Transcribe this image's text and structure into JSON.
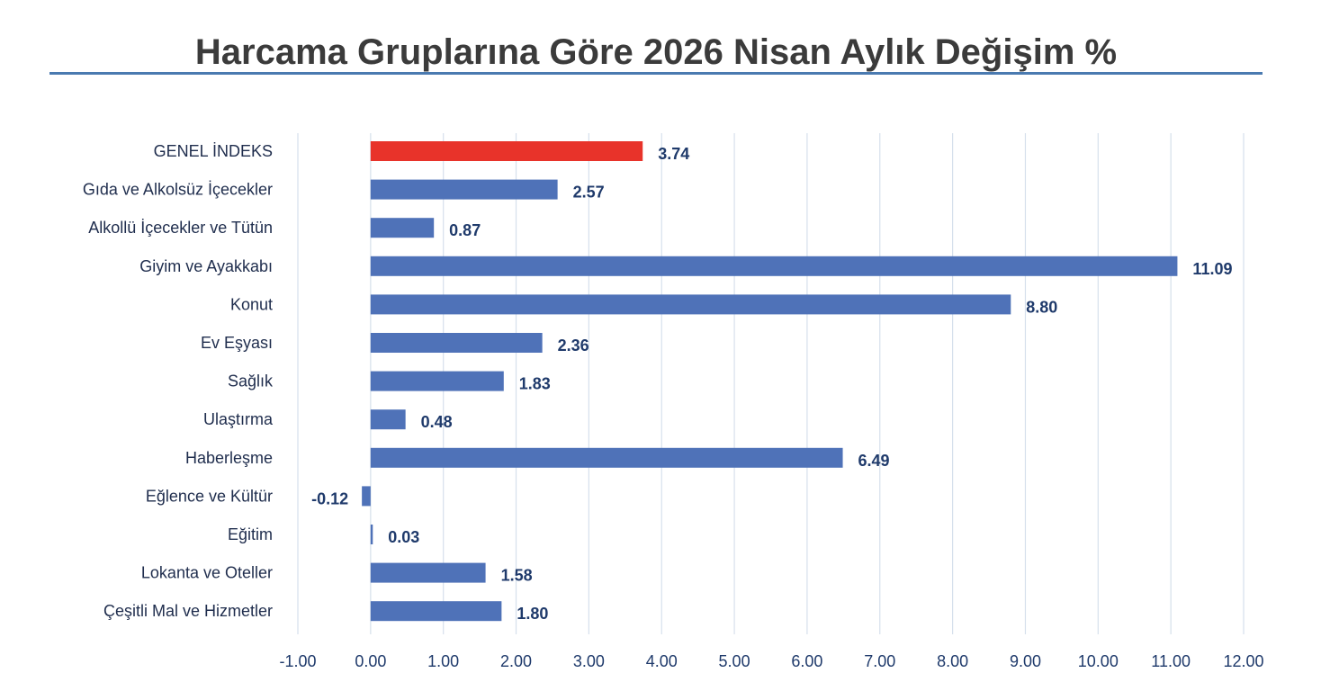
{
  "chart_data": {
    "type": "bar",
    "orientation": "horizontal",
    "title": "Harcama Gruplarına Göre 2026 Nisan Aylık Değişim %",
    "categories": [
      "GENEL İNDEKS",
      "Gıda ve Alkolsüz İçecekler",
      "Alkollü İçecekler ve Tütün",
      "Giyim ve Ayakkabı",
      "Konut",
      "Ev Eşyası",
      "Sağlık",
      "Ulaştırma",
      "Haberleşme",
      "Eğlence ve Kültür",
      "Eğitim",
      "Lokanta ve Oteller",
      "Çeşitli Mal ve Hizmetler"
    ],
    "values": [
      3.74,
      2.57,
      0.87,
      11.09,
      8.8,
      2.36,
      1.83,
      0.48,
      6.49,
      -0.12,
      0.03,
      1.58,
      1.8
    ],
    "value_labels": [
      "3.74",
      "2.57",
      "0.87",
      "11.09",
      "8.80",
      "2.36",
      "1.83",
      "0.48",
      "6.49",
      "-0.12",
      "0.03",
      "1.58",
      "1.80"
    ],
    "xlim": [
      -1,
      12
    ],
    "xticks": [
      "-1.00",
      "0.00",
      "1.00",
      "2.00",
      "3.00",
      "4.00",
      "5.00",
      "6.00",
      "7.00",
      "8.00",
      "9.00",
      "10.00",
      "11.00",
      "12.00"
    ],
    "highlight_index": 0,
    "colors": {
      "bar": "#4f72b8",
      "highlight": "#e8332a",
      "grid": "#d6e0ec",
      "title_rule": "#4a7ab0"
    },
    "grid": true,
    "legend": "none"
  }
}
